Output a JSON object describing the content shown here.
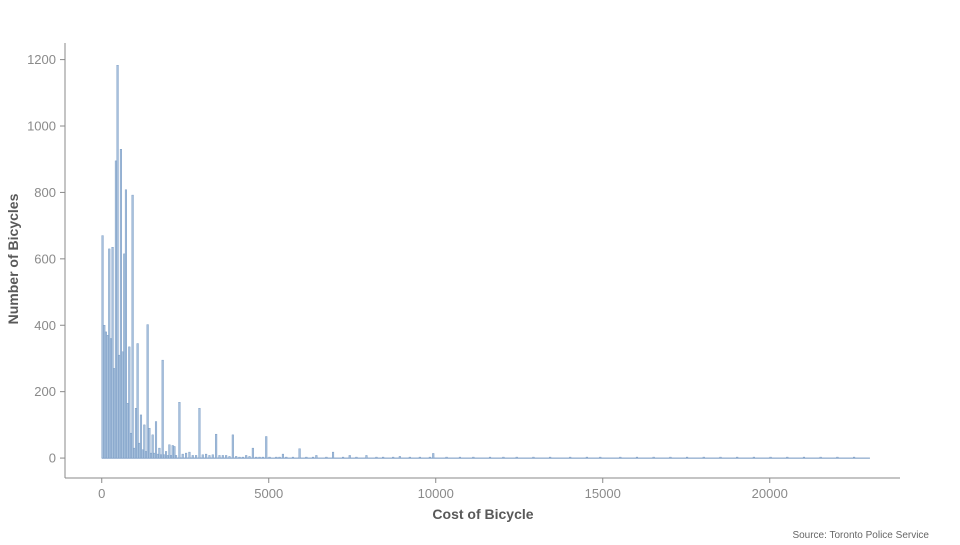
{
  "chart_data": {
    "type": "bar",
    "title": "",
    "xlabel": "Cost of Bicycle",
    "ylabel": "Number of Bicycles",
    "xlim": [
      -1100,
      23900
    ],
    "ylim": [
      -60,
      1250
    ],
    "x_ticks": [
      0,
      5000,
      10000,
      15000,
      20000
    ],
    "y_ticks": [
      0,
      200,
      400,
      600,
      800,
      1000,
      1200
    ],
    "bin_width": 50,
    "grid": false,
    "legend": "none",
    "bar_color": "#a7c0dc",
    "bar_edge_color": "#6f93bf",
    "axis_color": "#8a8a8a",
    "series": [
      {
        "bins": [
          [
            0,
            670
          ],
          [
            50,
            400
          ],
          [
            100,
            380
          ],
          [
            150,
            370
          ],
          [
            200,
            630
          ],
          [
            250,
            360
          ],
          [
            300,
            635
          ],
          [
            350,
            270
          ],
          [
            400,
            895
          ],
          [
            450,
            1183
          ],
          [
            500,
            310
          ],
          [
            550,
            930
          ],
          [
            600,
            320
          ],
          [
            650,
            615
          ],
          [
            700,
            808
          ],
          [
            750,
            165
          ],
          [
            800,
            335
          ],
          [
            850,
            75
          ],
          [
            900,
            792
          ],
          [
            950,
            30
          ],
          [
            1000,
            150
          ],
          [
            1050,
            345
          ],
          [
            1100,
            45
          ],
          [
            1150,
            130
          ],
          [
            1200,
            25
          ],
          [
            1250,
            100
          ],
          [
            1300,
            20
          ],
          [
            1350,
            402
          ],
          [
            1400,
            90
          ],
          [
            1450,
            15
          ],
          [
            1500,
            70
          ],
          [
            1550,
            15
          ],
          [
            1600,
            110
          ],
          [
            1650,
            12
          ],
          [
            1700,
            30
          ],
          [
            1750,
            10
          ],
          [
            1800,
            295
          ],
          [
            1850,
            10
          ],
          [
            1900,
            20
          ],
          [
            1950,
            8
          ],
          [
            2000,
            40
          ],
          [
            2050,
            8
          ],
          [
            2100,
            38
          ],
          [
            2150,
            35
          ],
          [
            2200,
            8
          ],
          [
            2300,
            168
          ],
          [
            2400,
            12
          ],
          [
            2500,
            15
          ],
          [
            2600,
            18
          ],
          [
            2700,
            8
          ],
          [
            2800,
            8
          ],
          [
            2900,
            150
          ],
          [
            3000,
            10
          ],
          [
            3100,
            12
          ],
          [
            3200,
            8
          ],
          [
            3300,
            10
          ],
          [
            3400,
            72
          ],
          [
            3500,
            8
          ],
          [
            3600,
            8
          ],
          [
            3700,
            8
          ],
          [
            3800,
            5
          ],
          [
            3900,
            70
          ],
          [
            4000,
            5
          ],
          [
            4100,
            3
          ],
          [
            4200,
            3
          ],
          [
            4300,
            8
          ],
          [
            4400,
            5
          ],
          [
            4500,
            30
          ],
          [
            4600,
            3
          ],
          [
            4700,
            3
          ],
          [
            4800,
            3
          ],
          [
            4900,
            65
          ],
          [
            5000,
            3
          ],
          [
            5200,
            3
          ],
          [
            5300,
            3
          ],
          [
            5400,
            12
          ],
          [
            5500,
            3
          ],
          [
            5700,
            3
          ],
          [
            5900,
            28
          ],
          [
            6100,
            3
          ],
          [
            6300,
            3
          ],
          [
            6400,
            8
          ],
          [
            6700,
            3
          ],
          [
            6900,
            18
          ],
          [
            7200,
            3
          ],
          [
            7400,
            8
          ],
          [
            7600,
            3
          ],
          [
            7900,
            8
          ],
          [
            8200,
            3
          ],
          [
            8400,
            3
          ],
          [
            8700,
            3
          ],
          [
            8900,
            5
          ],
          [
            9200,
            3
          ],
          [
            9500,
            3
          ],
          [
            9800,
            3
          ],
          [
            9900,
            14
          ],
          [
            10300,
            3
          ],
          [
            10700,
            3
          ],
          [
            11100,
            3
          ],
          [
            11600,
            3
          ],
          [
            12000,
            3
          ],
          [
            12400,
            3
          ],
          [
            12900,
            3
          ],
          [
            13400,
            3
          ],
          [
            14000,
            3
          ],
          [
            14500,
            3
          ],
          [
            14900,
            3
          ],
          [
            15500,
            3
          ],
          [
            16000,
            3
          ],
          [
            16500,
            3
          ],
          [
            17000,
            3
          ],
          [
            17500,
            3
          ],
          [
            18000,
            3
          ],
          [
            18500,
            3
          ],
          [
            19000,
            3
          ],
          [
            19500,
            3
          ],
          [
            20000,
            3
          ],
          [
            20500,
            3
          ],
          [
            21000,
            3
          ],
          [
            21500,
            3
          ],
          [
            22000,
            3
          ],
          [
            22500,
            3
          ]
        ]
      }
    ]
  },
  "source_note": "Source: Toronto Police Service"
}
